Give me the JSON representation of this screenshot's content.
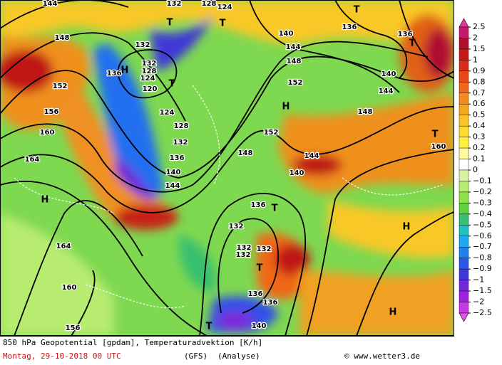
{
  "map": {
    "labels": [
      "144",
      "132",
      "128",
      "124",
      "T",
      "T",
      "T",
      "148",
      "136",
      "H",
      "132",
      "132",
      "128",
      "124",
      "120",
      "T",
      "124",
      "128",
      "132",
      "136",
      "140",
      "144",
      "152",
      "156",
      "160",
      "164",
      "H",
      "164",
      "160",
      "156",
      "140",
      "144",
      "148",
      "152",
      "H",
      "152",
      "148",
      "144",
      "140",
      "136",
      "T",
      "132",
      "132",
      "132",
      "132",
      "T",
      "136",
      "136",
      "140",
      "T",
      "136",
      "140",
      "144",
      "148",
      "136",
      "T",
      "T",
      "160",
      "H",
      "H"
    ]
  },
  "colorbar": {
    "labels": [
      "2.5",
      "2",
      "1.5",
      "1",
      "0.9",
      "0.8",
      "0.7",
      "0.6",
      "0.5",
      "0.4",
      "0.3",
      "0.2",
      "0.1",
      "0",
      "−0.1",
      "−0.2",
      "−0.3",
      "−0.4",
      "−0.5",
      "−0.6",
      "−0.7",
      "−0.8",
      "−0.9",
      "−1",
      "−1.5",
      "−2",
      "−2.5"
    ],
    "colors": [
      "#e2389c",
      "#c8186a",
      "#b01030",
      "#c81818",
      "#dc2a1a",
      "#e84818",
      "#f06818",
      "#f58a1c",
      "#f8a820",
      "#fac428",
      "#fcdc30",
      "#fff040",
      "#fff8a0",
      "#ffffff",
      "#d8f4a0",
      "#b8ec70",
      "#90e048",
      "#60d040",
      "#38c070",
      "#20c0c0",
      "#20a8f0",
      "#2080f0",
      "#2858e8",
      "#4038d8",
      "#7028d8",
      "#a020e0",
      "#c838e8",
      "#e058e0"
    ]
  },
  "footer": {
    "title": "850 hPa Geopotential [gpdam], Temperaturadvektion [K/h]",
    "date": "Montag, 29-10-2018  00 UTC",
    "model": "(GFS)",
    "run": "(Analyse)",
    "credit": "© www.wetter3.de"
  }
}
